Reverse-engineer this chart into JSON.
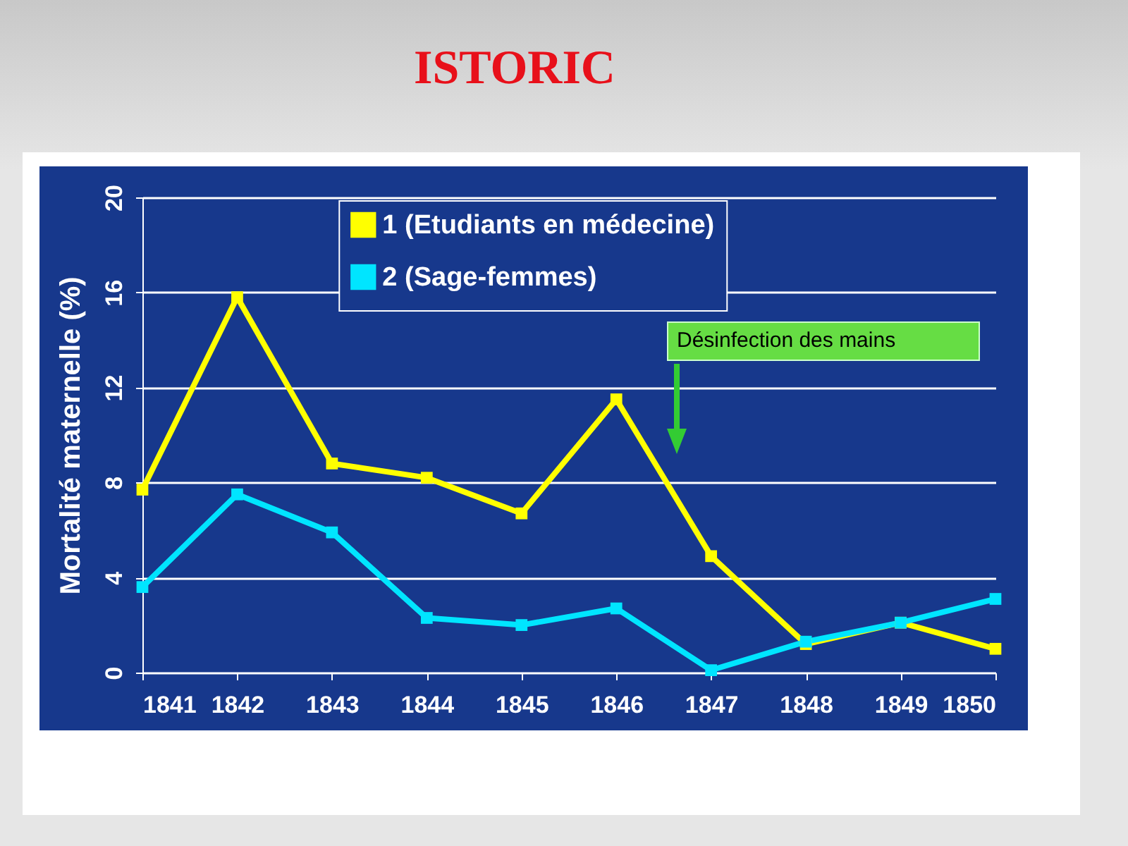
{
  "chart_data": {
    "type": "line",
    "title": "ISTORIC",
    "ylabel": "Mortalité maternelle (%)",
    "x": [
      1841,
      1842,
      1843,
      1844,
      1845,
      1846,
      1847,
      1848,
      1849,
      1850
    ],
    "xlim": [
      1841,
      1850
    ],
    "xticks": [
      1841,
      1842,
      1843,
      1844,
      1845,
      1846,
      1847,
      1848,
      1849,
      1850
    ],
    "ylim": [
      0,
      20
    ],
    "yticks": [
      0,
      4,
      8,
      12,
      16,
      20
    ],
    "grid": "y",
    "legend": "top",
    "marker": "square",
    "line_style": "solid",
    "series": [
      {
        "name": "1 (Etudiants en médecine)",
        "color": "#ffff00",
        "values": [
          7.7,
          15.8,
          8.8,
          8.2,
          6.7,
          11.5,
          4.9,
          1.2,
          2.1,
          1.0
        ]
      },
      {
        "name": "2 (Sage-femmes)",
        "color": "#00e5ff",
        "values": [
          3.6,
          7.5,
          5.9,
          2.3,
          2.0,
          2.7,
          0.1,
          1.3,
          2.1,
          3.1
        ]
      }
    ],
    "annotations": [
      "Désinfection des mains"
    ]
  }
}
